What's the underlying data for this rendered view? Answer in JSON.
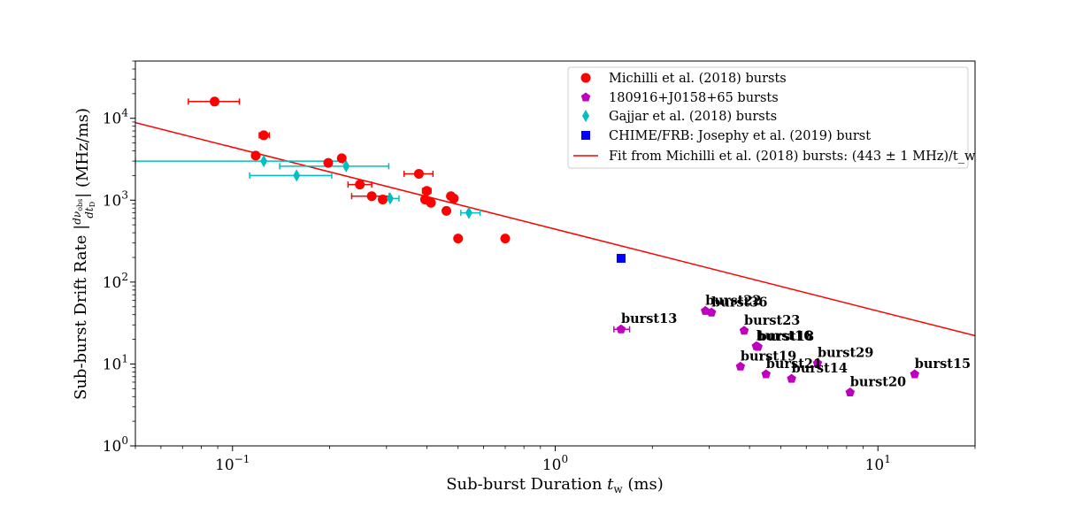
{
  "chart_data": {
    "type": "scatter",
    "xlabel": "Sub-burst Duration $t_w$ (ms)",
    "ylabel": "Sub-burst Drift Rate |dν_obs/dt_D| (MHz/ms)",
    "x_scale": "log",
    "y_scale": "log",
    "xlim": [
      0.05,
      20
    ],
    "ylim": [
      1,
      50000
    ],
    "grid": false,
    "legend_position": "top-right",
    "x_ticks": [
      {
        "value": 0.1,
        "base": "10",
        "exp": "−1"
      },
      {
        "value": 1,
        "base": "10",
        "exp": "0"
      },
      {
        "value": 10,
        "base": "10",
        "exp": "1"
      }
    ],
    "y_ticks": [
      {
        "value": 1,
        "base": "10",
        "exp": "0"
      },
      {
        "value": 10,
        "base": "10",
        "exp": "1"
      },
      {
        "value": 100,
        "base": "10",
        "exp": "2"
      },
      {
        "value": 1000,
        "base": "10",
        "exp": "3"
      },
      {
        "value": 10000,
        "base": "10",
        "exp": "4"
      }
    ],
    "series": [
      {
        "name": "Michilli et al. (2018) bursts",
        "marker": "circle",
        "color": "#ff0000",
        "points": [
          {
            "x": 0.088,
            "y": 16000,
            "xerr": [
              0.073,
              0.105
            ]
          },
          {
            "x": 0.118,
            "y": 3500
          },
          {
            "x": 0.125,
            "y": 6200,
            "xerr": [
              0.121,
              0.13
            ]
          },
          {
            "x": 0.198,
            "y": 2850
          },
          {
            "x": 0.218,
            "y": 3250
          },
          {
            "x": 0.248,
            "y": 1550,
            "xerr": [
              0.228,
              0.27
            ]
          },
          {
            "x": 0.27,
            "y": 1120,
            "xerr": [
              0.234,
              0.306
            ]
          },
          {
            "x": 0.292,
            "y": 1020
          },
          {
            "x": 0.378,
            "y": 2100,
            "xerr": [
              0.34,
              0.418
            ]
          },
          {
            "x": 0.395,
            "y": 1020
          },
          {
            "x": 0.4,
            "y": 1300,
            "xerr": [
              0.388,
              0.412
            ]
          },
          {
            "x": 0.412,
            "y": 930
          },
          {
            "x": 0.46,
            "y": 740
          },
          {
            "x": 0.475,
            "y": 1120
          },
          {
            "x": 0.485,
            "y": 1050
          },
          {
            "x": 0.5,
            "y": 340
          },
          {
            "x": 0.7,
            "y": 340
          }
        ]
      },
      {
        "name": "180916+J0158+65 bursts",
        "marker": "pentagon",
        "color": "#bf00bf",
        "points": [
          {
            "x": 1.6,
            "y": 26.5,
            "label": "burst13",
            "xerr": [
              1.52,
              1.7
            ]
          },
          {
            "x": 2.92,
            "y": 44.5,
            "label": "burst22"
          },
          {
            "x": 3.05,
            "y": 42.5,
            "label": "burst36"
          },
          {
            "x": 3.85,
            "y": 25.5,
            "label": "burst23"
          },
          {
            "x": 4.2,
            "y": 16.5,
            "label": "burst16"
          },
          {
            "x": 4.25,
            "y": 16.2,
            "label": "burst18"
          },
          {
            "x": 3.75,
            "y": 9.3,
            "label": "burst19"
          },
          {
            "x": 4.5,
            "y": 7.5,
            "label": "burst21"
          },
          {
            "x": 5.4,
            "y": 6.6,
            "label": "burst14"
          },
          {
            "x": 6.5,
            "y": 10.2,
            "label": "burst29"
          },
          {
            "x": 8.2,
            "y": 4.5,
            "label": "burst20"
          },
          {
            "x": 13.0,
            "y": 7.5,
            "label": "burst15"
          }
        ]
      },
      {
        "name": "Gajjar et al. (2018) bursts",
        "marker": "thin_diamond",
        "color": "#00bfbf",
        "points": [
          {
            "x": 0.125,
            "y": 3000,
            "xerr": [
              0.05,
              0.22
            ]
          },
          {
            "x": 0.158,
            "y": 2000,
            "xerr": [
              0.113,
              0.203
            ]
          },
          {
            "x": 0.225,
            "y": 2600,
            "xerr": [
              0.14,
              0.305
            ]
          },
          {
            "x": 0.308,
            "y": 1050,
            "xerr": [
              0.288,
              0.328
            ]
          },
          {
            "x": 0.54,
            "y": 700,
            "xerr": [
              0.51,
              0.585
            ]
          }
        ]
      },
      {
        "name": "CHIME/FRB: Josephy et al. (2019) burst",
        "marker": "square",
        "color": "#0000ff",
        "points": [
          {
            "x": 1.6,
            "y": 195
          }
        ]
      }
    ],
    "fit_line": {
      "name": "Fit from Michilli et al. (2018) bursts: (443 ± 1 MHz)/t_w",
      "color": "#ff0000",
      "coefficient": 443
    }
  }
}
